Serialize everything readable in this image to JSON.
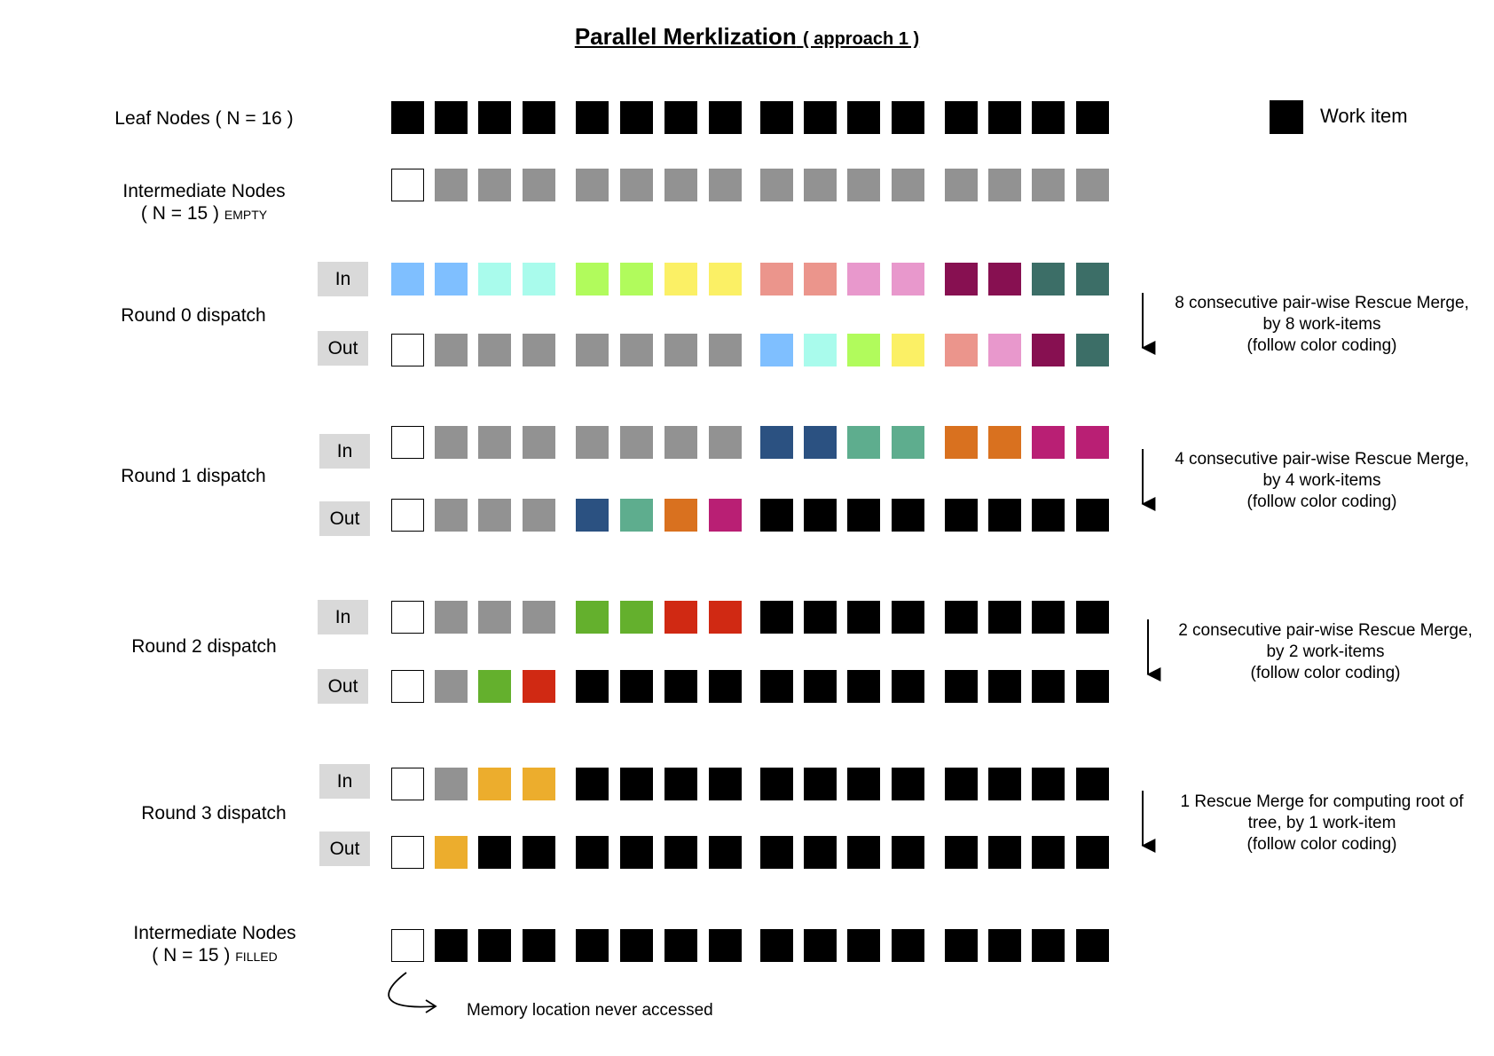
{
  "title": {
    "main": "Parallel Merklization",
    "sub": "( approach 1 )"
  },
  "legend": {
    "label": "Work item",
    "color": "#000000"
  },
  "colors": {
    "empty": "#ffffff",
    "gray": "#929292",
    "black": "#000000",
    "lightblue": "#7fbfff",
    "lightcyan": "#a9fbec",
    "lime": "#b1fb5c",
    "yellow": "#fbf065",
    "salmon": "#eb958c",
    "pink": "#e898cc",
    "maroon": "#871051",
    "teal": "#3c6e67",
    "navy": "#2b5181",
    "seagreen": "#5ead8e",
    "orange": "#d9711f",
    "magenta": "#b91f74",
    "green": "#64b02d",
    "red": "#d02913",
    "gold": "#ecad2d"
  },
  "rows": [
    {
      "name": "leaf-nodes-row",
      "cells": [
        "black",
        "black",
        "black",
        "black",
        "black",
        "black",
        "black",
        "black",
        "black",
        "black",
        "black",
        "black",
        "black",
        "black",
        "black",
        "black"
      ]
    },
    {
      "name": "intermediate-empty-row",
      "cells": [
        "empty",
        "gray",
        "gray",
        "gray",
        "gray",
        "gray",
        "gray",
        "gray",
        "gray",
        "gray",
        "gray",
        "gray",
        "gray",
        "gray",
        "gray",
        "gray"
      ]
    },
    {
      "name": "round0-in-row",
      "cells": [
        "lightblue",
        "lightblue",
        "lightcyan",
        "lightcyan",
        "lime",
        "lime",
        "yellow",
        "yellow",
        "salmon",
        "salmon",
        "pink",
        "pink",
        "maroon",
        "maroon",
        "teal",
        "teal"
      ]
    },
    {
      "name": "round0-out-row",
      "cells": [
        "empty",
        "gray",
        "gray",
        "gray",
        "gray",
        "gray",
        "gray",
        "gray",
        "lightblue",
        "lightcyan",
        "lime",
        "yellow",
        "salmon",
        "pink",
        "maroon",
        "teal"
      ]
    },
    {
      "name": "round1-in-row",
      "cells": [
        "empty",
        "gray",
        "gray",
        "gray",
        "gray",
        "gray",
        "gray",
        "gray",
        "navy",
        "navy",
        "seagreen",
        "seagreen",
        "orange",
        "orange",
        "magenta",
        "magenta"
      ]
    },
    {
      "name": "round1-out-row",
      "cells": [
        "empty",
        "gray",
        "gray",
        "gray",
        "navy",
        "seagreen",
        "orange",
        "magenta",
        "black",
        "black",
        "black",
        "black",
        "black",
        "black",
        "black",
        "black"
      ]
    },
    {
      "name": "round2-in-row",
      "cells": [
        "empty",
        "gray",
        "gray",
        "gray",
        "green",
        "green",
        "red",
        "red",
        "black",
        "black",
        "black",
        "black",
        "black",
        "black",
        "black",
        "black"
      ]
    },
    {
      "name": "round2-out-row",
      "cells": [
        "empty",
        "gray",
        "green",
        "red",
        "black",
        "black",
        "black",
        "black",
        "black",
        "black",
        "black",
        "black",
        "black",
        "black",
        "black",
        "black"
      ]
    },
    {
      "name": "round3-in-row",
      "cells": [
        "empty",
        "gray",
        "gold",
        "gold",
        "black",
        "black",
        "black",
        "black",
        "black",
        "black",
        "black",
        "black",
        "black",
        "black",
        "black",
        "black"
      ]
    },
    {
      "name": "round3-out-row",
      "cells": [
        "empty",
        "gold",
        "black",
        "black",
        "black",
        "black",
        "black",
        "black",
        "black",
        "black",
        "black",
        "black",
        "black",
        "black",
        "black",
        "black"
      ]
    },
    {
      "name": "intermediate-filled-row",
      "cells": [
        "empty",
        "black",
        "black",
        "black",
        "black",
        "black",
        "black",
        "black",
        "black",
        "black",
        "black",
        "black",
        "black",
        "black",
        "black",
        "black"
      ]
    }
  ],
  "labels": {
    "leaf": {
      "text": "Leaf Nodes",
      "count": "( N = 16 )"
    },
    "inter_empty": {
      "line1": "Intermediate Nodes",
      "line2": "( N = 15 )",
      "small": "EMPTY"
    },
    "round0": "Round 0 dispatch",
    "round1": "Round 1 dispatch",
    "round2": "Round 2 dispatch",
    "round3": "Round 3 dispatch",
    "inter_filled": {
      "line1": "Intermediate Nodes",
      "line2": "( N = 15 )",
      "small": "FILLED"
    },
    "in": "In",
    "out": "Out"
  },
  "descriptions": {
    "round0": [
      "8 consecutive pair-wise Rescue Merge,",
      "by 8 work-items",
      "(follow color coding)"
    ],
    "round1": [
      "4 consecutive pair-wise Rescue Merge,",
      "by 4 work-items",
      "(follow color coding)"
    ],
    "round2": [
      "2 consecutive pair-wise Rescue Merge,",
      "by 2 work-items",
      "(follow color coding)"
    ],
    "round3": [
      "1 Rescue Merge for computing root of",
      "tree, by 1 work-item",
      "(follow color coding)"
    ]
  },
  "note": "Memory location never accessed"
}
